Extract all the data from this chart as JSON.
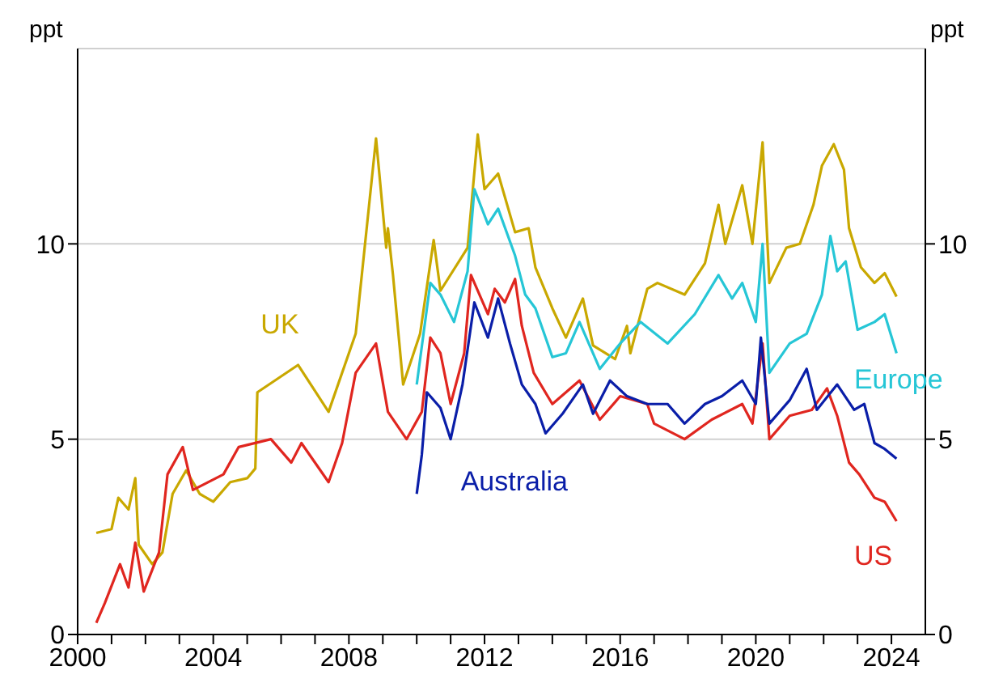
{
  "chart_data": {
    "type": "line",
    "ylabel": "ppt",
    "y2label": "ppt",
    "xlim": [
      2000,
      2025
    ],
    "xticks": [
      2000,
      {
        "value": 2001,
        "label": null
      },
      {
        "value": 2002,
        "label": null
      },
      {
        "value": 2003,
        "label": null
      },
      2004,
      {
        "value": 2005,
        "label": null
      },
      {
        "value": 2006,
        "label": null
      },
      {
        "value": 2007,
        "label": null
      },
      2008,
      {
        "value": 2009,
        "label": null
      },
      {
        "value": 2010,
        "label": null
      },
      {
        "value": 2011,
        "label": null
      },
      2012,
      {
        "value": 2013,
        "label": null
      },
      {
        "value": 2014,
        "label": null
      },
      {
        "value": 2015,
        "label": null
      },
      2016,
      {
        "value": 2017,
        "label": null
      },
      {
        "value": 2018,
        "label": null
      },
      {
        "value": 2019,
        "label": null
      },
      2020,
      {
        "value": 2021,
        "label": null
      },
      {
        "value": 2022,
        "label": null
      },
      {
        "value": 2023,
        "label": null
      },
      2024
    ],
    "ylim": [
      0,
      15
    ],
    "yticks": [
      0,
      5,
      10
    ],
    "y2lim": [
      0,
      15
    ],
    "y2ticks": [
      0,
      5,
      10
    ],
    "grid": "y",
    "marker": "none",
    "line_style": "solid",
    "series": [
      {
        "name": "UK",
        "color": "#c9a800",
        "x": [
          2000.55,
          2001.0,
          2001.2,
          2001.5,
          2001.7,
          2001.8,
          2002.2,
          2002.5,
          2002.8,
          2003.2,
          2003.6,
          2004.0,
          2004.5,
          2005.0,
          2005.24,
          2005.3,
          2006.5,
          2007.4,
          2008.2,
          2008.8,
          2009.1,
          2009.15,
          2009.3,
          2009.6,
          2010.1,
          2010.5,
          2010.7,
          2011.5,
          2011.8,
          2012.0,
          2012.4,
          2012.9,
          2013.3,
          2013.5,
          2014.0,
          2014.4,
          2014.9,
          2015.2,
          2015.85,
          2016.2,
          2016.3,
          2016.8,
          2017.1,
          2017.9,
          2018.5,
          2018.9,
          2019.1,
          2019.6,
          2019.9,
          2020.2,
          2020.4,
          2020.9,
          2021.3,
          2021.7,
          2021.95,
          2022.3,
          2022.6,
          2022.75,
          2023.1,
          2023.5,
          2023.8,
          2024.15
        ],
        "values": [
          2.6,
          2.7,
          3.5,
          3.2,
          4.0,
          2.3,
          1.8,
          2.1,
          3.6,
          4.2,
          3.6,
          3.4,
          3.9,
          4.0,
          4.25,
          6.2,
          6.9,
          5.7,
          7.7,
          12.7,
          9.9,
          10.4,
          9.2,
          6.4,
          7.7,
          10.1,
          8.8,
          9.9,
          12.8,
          11.4,
          11.8,
          10.3,
          10.4,
          9.4,
          8.35,
          7.6,
          8.6,
          7.4,
          7.05,
          7.9,
          7.2,
          8.85,
          9.0,
          8.7,
          9.5,
          11.0,
          10.0,
          11.5,
          10.0,
          12.6,
          9.0,
          9.9,
          10.0,
          11.0,
          12.0,
          12.55,
          11.9,
          10.4,
          9.4,
          9.0,
          9.25,
          8.65
        ]
      },
      {
        "name": "US",
        "color": "#e0261f",
        "x": [
          2000.55,
          2000.8,
          2001.25,
          2001.5,
          2001.7,
          2001.95,
          2002.4,
          2002.65,
          2003.1,
          2003.4,
          2004.3,
          2004.75,
          2005.7,
          2006.3,
          2006.6,
          2007.4,
          2007.8,
          2008.2,
          2008.8,
          2009.15,
          2009.7,
          2010.15,
          2010.4,
          2010.7,
          2011.0,
          2011.4,
          2011.6,
          2012.1,
          2012.3,
          2012.6,
          2012.9,
          2013.1,
          2013.45,
          2014.0,
          2014.8,
          2015.4,
          2016.0,
          2016.8,
          2017.0,
          2017.9,
          2018.7,
          2019.6,
          2019.9,
          2020.2,
          2020.4,
          2021.0,
          2021.65,
          2022.1,
          2022.4,
          2022.75,
          2023.05,
          2023.5,
          2023.8,
          2024.15
        ],
        "values": [
          0.3,
          0.8,
          1.8,
          1.2,
          2.35,
          1.1,
          2.1,
          4.1,
          4.8,
          3.7,
          4.1,
          4.8,
          5.0,
          4.4,
          4.9,
          3.9,
          4.9,
          6.7,
          7.45,
          5.7,
          5.0,
          5.7,
          7.6,
          7.2,
          5.9,
          7.2,
          9.2,
          8.2,
          8.85,
          8.5,
          9.1,
          7.9,
          6.7,
          5.9,
          6.5,
          5.5,
          6.1,
          5.9,
          5.4,
          5.0,
          5.5,
          5.9,
          5.4,
          7.45,
          5.0,
          5.6,
          5.75,
          6.3,
          5.6,
          4.4,
          4.1,
          3.5,
          3.4,
          2.9
        ]
      },
      {
        "name": "Australia",
        "color": "#0a1ea8",
        "x": [
          2010.0,
          2010.15,
          2010.3,
          2010.7,
          2011.0,
          2011.35,
          2011.7,
          2012.1,
          2012.4,
          2012.75,
          2013.1,
          2013.5,
          2013.8,
          2014.3,
          2014.9,
          2015.2,
          2015.7,
          2016.2,
          2016.8,
          2017.4,
          2017.9,
          2018.5,
          2019.0,
          2019.6,
          2020.0,
          2020.15,
          2020.4,
          2021.0,
          2021.5,
          2021.8,
          2022.4,
          2022.9,
          2023.2,
          2023.5,
          2023.8,
          2024.15
        ],
        "values": [
          3.6,
          4.6,
          6.2,
          5.8,
          5.0,
          6.4,
          8.5,
          7.6,
          8.6,
          7.45,
          6.4,
          5.9,
          5.15,
          5.65,
          6.4,
          5.65,
          6.5,
          6.1,
          5.9,
          5.9,
          5.4,
          5.9,
          6.1,
          6.5,
          5.9,
          7.6,
          5.4,
          6.0,
          6.8,
          5.75,
          6.4,
          5.75,
          5.9,
          4.9,
          4.75,
          4.5
        ]
      },
      {
        "name": "Europe",
        "color": "#26c6d6",
        "x": [
          2010.0,
          2010.4,
          2010.7,
          2011.1,
          2011.5,
          2011.7,
          2012.1,
          2012.4,
          2012.9,
          2013.2,
          2013.5,
          2014.0,
          2014.4,
          2014.8,
          2015.4,
          2016.0,
          2016.6,
          2017.4,
          2018.2,
          2018.9,
          2019.3,
          2019.6,
          2020.0,
          2020.2,
          2020.4,
          2021.0,
          2021.5,
          2021.95,
          2022.2,
          2022.4,
          2022.65,
          2023.0,
          2023.5,
          2023.8,
          2024.15
        ],
        "values": [
          6.4,
          9.0,
          8.7,
          8.0,
          9.3,
          11.4,
          10.5,
          10.9,
          9.7,
          8.7,
          8.35,
          7.1,
          7.2,
          8.0,
          6.8,
          7.45,
          8.0,
          7.45,
          8.2,
          9.2,
          8.6,
          9.0,
          8.0,
          10.0,
          6.7,
          7.45,
          7.7,
          8.7,
          10.2,
          9.3,
          9.55,
          7.8,
          8.0,
          8.2,
          7.2
        ]
      }
    ]
  }
}
